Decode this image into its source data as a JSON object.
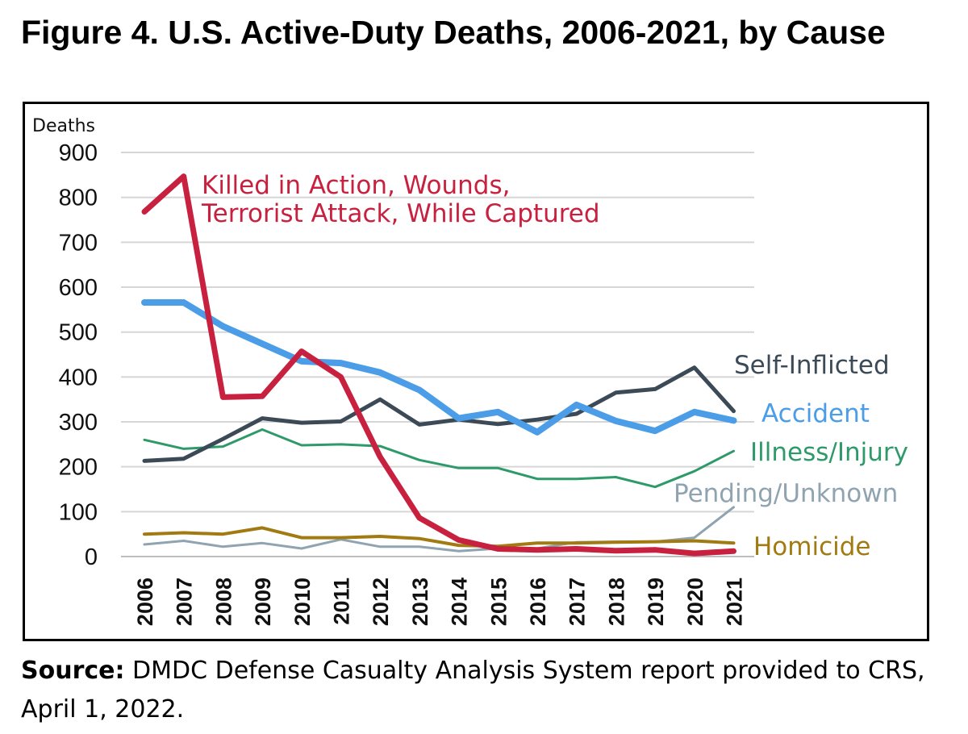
{
  "figure": {
    "title": "Figure 4. U.S. Active-Duty Deaths, 2006-2021, by Cause",
    "source_label": "Source:",
    "source_text": "DMDC Defense Casualty Analysis System report provided to CRS, April 1, 2022."
  },
  "chart_data": {
    "type": "line",
    "title": "Figure 4. U.S. Active-Duty Deaths, 2006-2021, by Cause",
    "ylabel": "Deaths",
    "xlabel": "",
    "ylim": [
      0,
      900
    ],
    "yticks": [
      0,
      100,
      200,
      300,
      400,
      500,
      600,
      700,
      800,
      900
    ],
    "grid": true,
    "categories": [
      "2006",
      "2007",
      "2008",
      "2009",
      "2010",
      "2011",
      "2012",
      "2013",
      "2014",
      "2015",
      "2016",
      "2017",
      "2018",
      "2019",
      "2020",
      "2021"
    ],
    "series": [
      {
        "key": "illness",
        "name": "Illness/Injury",
        "color": "#2e9a6a",
        "values": [
          260,
          240,
          245,
          283,
          248,
          250,
          246,
          215,
          197,
          197,
          173,
          173,
          177,
          155,
          190,
          235
        ]
      },
      {
        "key": "pending",
        "name": "Pending/Unknown",
        "color": "#8fa3b0",
        "values": [
          27,
          35,
          22,
          30,
          18,
          38,
          22,
          22,
          12,
          18,
          18,
          32,
          33,
          33,
          42,
          110
        ]
      },
      {
        "key": "homicide",
        "name": "Homicide",
        "color": "#a27a12",
        "values": [
          50,
          53,
          50,
          64,
          42,
          42,
          45,
          40,
          25,
          23,
          30,
          30,
          32,
          33,
          35,
          30
        ]
      },
      {
        "key": "self_inflicted",
        "name": "Self-Inflicted",
        "color": "#3b4a56",
        "values": [
          213,
          218,
          262,
          308,
          298,
          301,
          350,
          294,
          305,
          295,
          305,
          318,
          365,
          373,
          421,
          324
        ]
      },
      {
        "key": "accident",
        "name": "Accident",
        "color": "#4a9de6",
        "values": [
          566,
          566,
          513,
          474,
          435,
          431,
          410,
          371,
          308,
          322,
          277,
          338,
          302,
          280,
          322,
          303
        ]
      },
      {
        "key": "kia",
        "name": "Killed in Action, Wounds, Terrorist Attack, While Captured",
        "label_lines": [
          "Killed in Action, Wounds,",
          "Terrorist Attack, While Captured"
        ],
        "color": "#c8203f",
        "values": [
          768,
          847,
          355,
          357,
          457,
          400,
          222,
          86,
          37,
          17,
          15,
          17,
          13,
          15,
          7,
          12
        ]
      }
    ]
  }
}
